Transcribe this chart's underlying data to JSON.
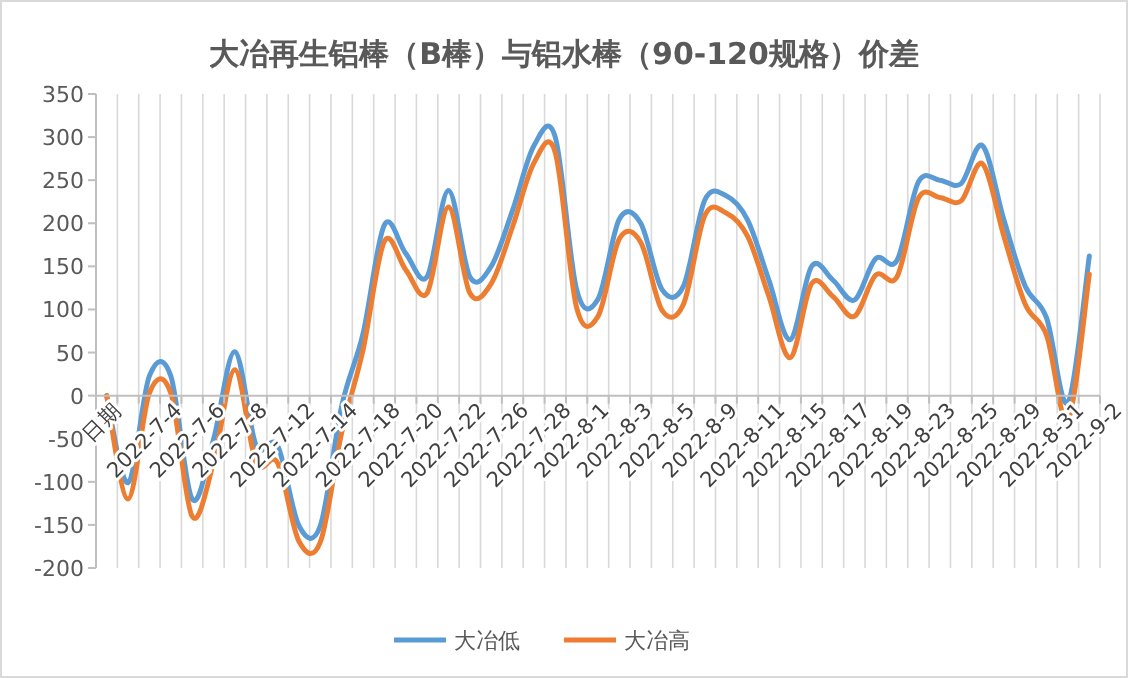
{
  "chart_data": {
    "type": "line",
    "title": "大冶再生铝棒（B棒）与铝水棒（90-120规格）价差",
    "categories": [
      "日期",
      null,
      "2022-7-4",
      null,
      "2022-7-6",
      null,
      "2022-7-8",
      null,
      "2022-7-12",
      null,
      "2022-7-14",
      null,
      "2022-7-18",
      null,
      "2022-7-20",
      null,
      "2022-7-22",
      null,
      "2022-7-26",
      null,
      "2022-7-28",
      null,
      "2022-8-1",
      null,
      "2022-8-3",
      null,
      "2022-8-5",
      null,
      "2022-8-9",
      null,
      "2022-8-11",
      null,
      "2022-8-15",
      null,
      "2022-8-17",
      null,
      "2022-8-19",
      null,
      "2022-8-23",
      null,
      "2022-8-25",
      null,
      "2022-8-29",
      null,
      "2022-8-31",
      null,
      "2022-9-2"
    ],
    "series": [
      {
        "name": "大冶低",
        "color": "#5b9bd5",
        "values": [
          0,
          -101,
          23,
          23,
          -120,
          -51,
          51,
          -58,
          -58,
          -151,
          -151,
          -12,
          72,
          198,
          165,
          138,
          238,
          138,
          150,
          215,
          290,
          300,
          123,
          112,
          205,
          200,
          123,
          127,
          227,
          232,
          204,
          134,
          65,
          150,
          134,
          111,
          159,
          157,
          248,
          250,
          246,
          290,
          204,
          127,
          90,
          -8,
          162
        ]
      },
      {
        "name": "大冶高",
        "color": "#ed7d31",
        "values": [
          0,
          -120,
          3,
          3,
          -140,
          -78,
          30,
          -78,
          -78,
          -169,
          -170,
          -43,
          53,
          179,
          146,
          119,
          219,
          119,
          130,
          196,
          270,
          282,
          102,
          92,
          182,
          178,
          99,
          106,
          209,
          212,
          185,
          115,
          44,
          130,
          115,
          92,
          140,
          138,
          229,
          230,
          226,
          269,
          185,
          106,
          70,
          -28,
          141
        ]
      }
    ],
    "ylim": [
      -200,
      350
    ],
    "yticks": [
      -200,
      -150,
      -100,
      -50,
      0,
      50,
      100,
      150,
      200,
      250,
      300,
      350
    ],
    "grid": "x",
    "legend": "bottom",
    "marker": "none",
    "line_style": "solid"
  }
}
